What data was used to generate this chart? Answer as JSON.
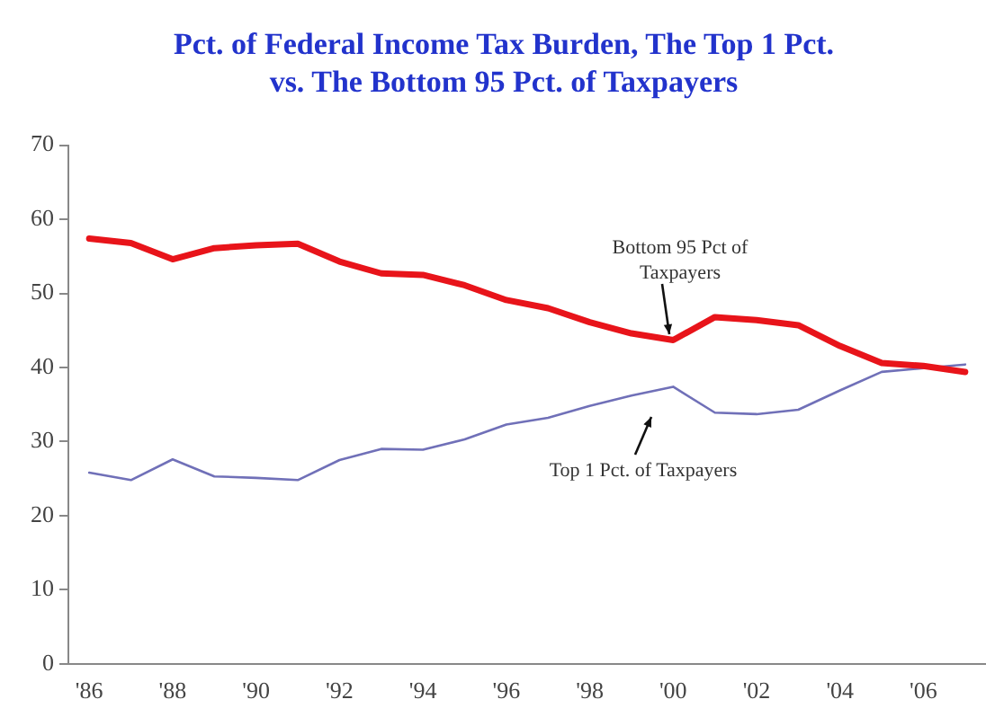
{
  "chart_data": {
    "type": "line",
    "title": "Pct. of Federal Income Tax Burden, The Top 1 Pct. vs. The Bottom 95 Pct. of Taxpayers",
    "categories": [
      "'86",
      null,
      "'88",
      null,
      "'90",
      null,
      "'92",
      null,
      "'94",
      null,
      "'96",
      null,
      "'98",
      null,
      "'00",
      null,
      "'02",
      null,
      "'04",
      null,
      "'06",
      null
    ],
    "series": [
      {
        "color": "#e8141a",
        "values": [
          57.4,
          56.8,
          54.6,
          56.1,
          56.5,
          56.7,
          54.3,
          52.7,
          52.5,
          51.1,
          49.1,
          48.0,
          46.1,
          44.6,
          43.7,
          46.8,
          46.4,
          45.7,
          42.9,
          40.6,
          40.2,
          39.4
        ]
      },
      {
        "color": "#7070b8",
        "values": [
          25.8,
          24.8,
          27.6,
          25.3,
          25.1,
          24.8,
          27.5,
          29.0,
          28.9,
          30.3,
          32.3,
          33.2,
          34.8,
          36.2,
          37.4,
          33.9,
          33.7,
          34.3,
          36.9,
          39.4,
          39.9,
          40.4
        ]
      }
    ],
    "ylim": [
      0,
      70
    ],
    "yticks": [
      0,
      10,
      20,
      30,
      40,
      50,
      60,
      70
    ],
    "grid": false,
    "legend": false,
    "marker": "none",
    "line_style": "solid",
    "annotations": [
      "Bottom 95 Pct of Taxpayers",
      "Top 1 Pct. of Taxpayers"
    ]
  }
}
